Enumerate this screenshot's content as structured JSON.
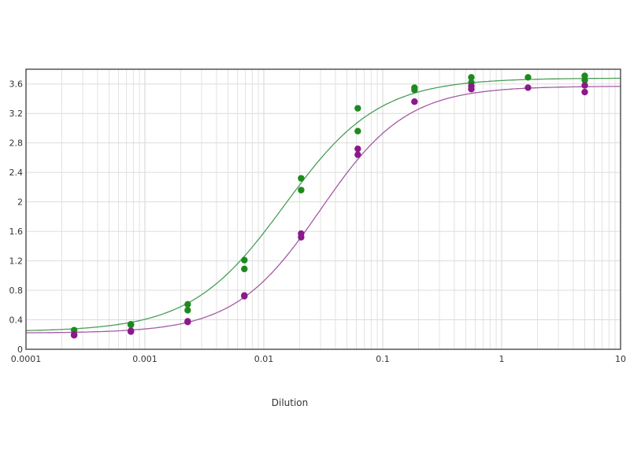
{
  "chart_data": {
    "type": "scatter",
    "title": "",
    "xlabel": "Dilution",
    "ylabel": "",
    "xscale": "log",
    "xlim": [
      0.0001,
      10
    ],
    "ylim": [
      0,
      3.8
    ],
    "xticks": [
      "0.0001",
      "0.001",
      "0.01",
      "0.1",
      "1",
      "10"
    ],
    "yticks": [
      "0",
      "0.4",
      "0.8",
      "1.2",
      "1.6",
      "2",
      "2.4",
      "2.8",
      "3.2",
      "3.6"
    ],
    "grid": true,
    "legend": "none",
    "series": [
      {
        "color": "#1e8a1e",
        "line_color": "#4a9e5a",
        "fit": {
          "model": "4PL",
          "bottom": 0.24,
          "top": 3.68,
          "ec50": 0.015,
          "hill": 1.1
        },
        "points": [
          [
            0.000254,
            0.26
          ],
          [
            0.000762,
            0.34
          ],
          [
            0.000762,
            0.33
          ],
          [
            0.00229,
            0.61
          ],
          [
            0.00229,
            0.53
          ],
          [
            0.00686,
            1.21
          ],
          [
            0.00686,
            1.09
          ],
          [
            0.0206,
            2.32
          ],
          [
            0.0206,
            2.16
          ],
          [
            0.0617,
            3.27
          ],
          [
            0.0617,
            2.96
          ],
          [
            0.185,
            3.55
          ],
          [
            0.185,
            3.52
          ],
          [
            0.556,
            3.69
          ],
          [
            0.556,
            3.62
          ],
          [
            1.667,
            3.69
          ],
          [
            5,
            3.71
          ],
          [
            5,
            3.65
          ]
        ]
      },
      {
        "color": "#8a1a8a",
        "line_color": "#a45aa4",
        "fit": {
          "model": "4PL",
          "bottom": 0.22,
          "top": 3.57,
          "ec50": 0.03,
          "hill": 1.2
        },
        "points": [
          [
            0.000254,
            0.2
          ],
          [
            0.000254,
            0.19
          ],
          [
            0.000762,
            0.24
          ],
          [
            0.000762,
            0.25
          ],
          [
            0.00229,
            0.38
          ],
          [
            0.00229,
            0.37
          ],
          [
            0.00686,
            0.73
          ],
          [
            0.00686,
            0.72
          ],
          [
            0.0206,
            1.57
          ],
          [
            0.0206,
            1.52
          ],
          [
            0.0617,
            2.72
          ],
          [
            0.0617,
            2.64
          ],
          [
            0.185,
            3.36
          ],
          [
            0.556,
            3.57
          ],
          [
            0.556,
            3.53
          ],
          [
            1.667,
            3.55
          ],
          [
            5,
            3.58
          ],
          [
            5,
            3.49
          ]
        ]
      }
    ]
  }
}
